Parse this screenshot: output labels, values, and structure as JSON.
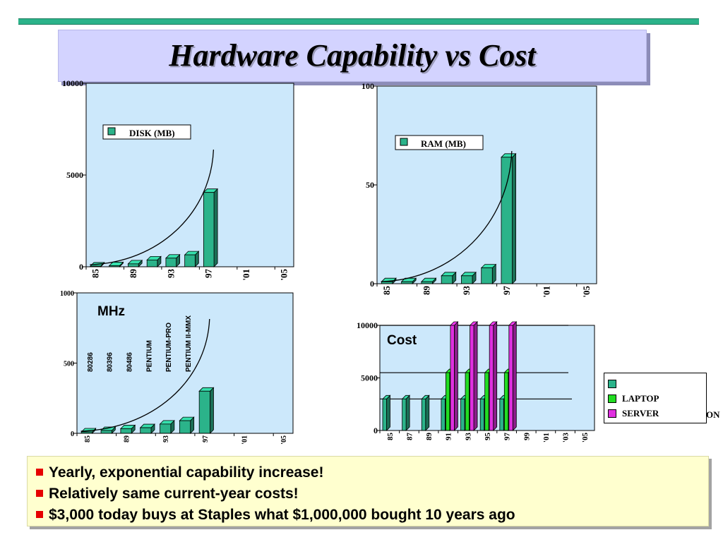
{
  "slide": {
    "title": "Hardware Capability vs Cost",
    "bullets": [
      "Yearly, exponential capability increase!",
      "Relatively same current-year costs!",
      "$3,000 today buys at Staples what $1,000,000 bought 10 years ago"
    ]
  },
  "colors": {
    "plot_bg": "#cce8fb",
    "bar": "#2bb38a",
    "laptop": "#22dd22",
    "server": "#e030e0",
    "rule": "#2bb38a",
    "bullet": "#e60000"
  },
  "chart_data": [
    {
      "id": "disk",
      "type": "bar",
      "legend": "DISK (MB)",
      "ylim": [
        0,
        10000
      ],
      "yticks": [
        "10000",
        "5000",
        "0"
      ],
      "x": [
        "85",
        "87",
        "89",
        "91",
        "93",
        "95",
        "97",
        "99",
        "'01",
        "'03",
        "'05"
      ],
      "xtick_labels": [
        "85",
        "89",
        "93",
        "97",
        "'01",
        "'05"
      ],
      "values": [
        40,
        60,
        160,
        370,
        470,
        650,
        4050,
        null,
        null,
        null,
        null
      ],
      "trend_curve": true
    },
    {
      "id": "ram",
      "type": "bar",
      "legend": "RAM (MB)",
      "ylim": [
        0,
        100
      ],
      "yticks": [
        "100",
        "50",
        "0"
      ],
      "x": [
        "85",
        "87",
        "89",
        "91",
        "93",
        "95",
        "97",
        "99",
        "'01",
        "'03",
        "'05"
      ],
      "xtick_labels": [
        "85",
        "89",
        "93",
        "97",
        "'01",
        "'05"
      ],
      "values": [
        1,
        1,
        1,
        4,
        4,
        8,
        64,
        null,
        null,
        null,
        null
      ],
      "trend_curve": true
    },
    {
      "id": "mhz",
      "type": "bar",
      "title": "MHz",
      "ylim": [
        0,
        1000
      ],
      "yticks": [
        "1000",
        "500",
        "0"
      ],
      "x": [
        "85",
        "87",
        "89",
        "91",
        "93",
        "95",
        "97",
        "99",
        "'01",
        "'03",
        "'05"
      ],
      "xtick_labels": [
        "85",
        "89",
        "93",
        "97",
        "'01",
        "'05"
      ],
      "values": [
        10,
        20,
        33,
        40,
        66,
        90,
        300,
        null,
        null,
        null,
        null
      ],
      "annotations": [
        "80286",
        "80396",
        "80486",
        "PENTIUM",
        "PENTIUM-PRO",
        "PENTIUM II-MMX"
      ],
      "trend_curve": true
    },
    {
      "id": "cost",
      "type": "bar",
      "title": "Cost",
      "ylim": [
        0,
        10000
      ],
      "yticks": [
        "10000",
        "5000",
        "0"
      ],
      "x": [
        "85",
        "87",
        "89",
        "91",
        "93",
        "95",
        "97",
        "99",
        "'01",
        "'03",
        "'05"
      ],
      "xtick_labels": [
        "85",
        "87",
        "89",
        "91",
        "93",
        "95",
        "97",
        "99",
        "'01",
        "'03",
        "'05"
      ],
      "series": [
        {
          "name": "",
          "values": [
            3000,
            3000,
            3000,
            3000,
            3000,
            3000,
            3000,
            null,
            null,
            null,
            null
          ]
        },
        {
          "name": "LAPTOP",
          "values": [
            null,
            null,
            null,
            5500,
            5500,
            5500,
            5500,
            null,
            null,
            null,
            null
          ]
        },
        {
          "name": "SERVER",
          "values": [
            null,
            null,
            null,
            10000,
            10000,
            10000,
            10000,
            null,
            null,
            null,
            null
          ]
        }
      ],
      "reference_lines": [
        3000,
        5500,
        10000
      ],
      "legend_fragment": "ON"
    }
  ]
}
